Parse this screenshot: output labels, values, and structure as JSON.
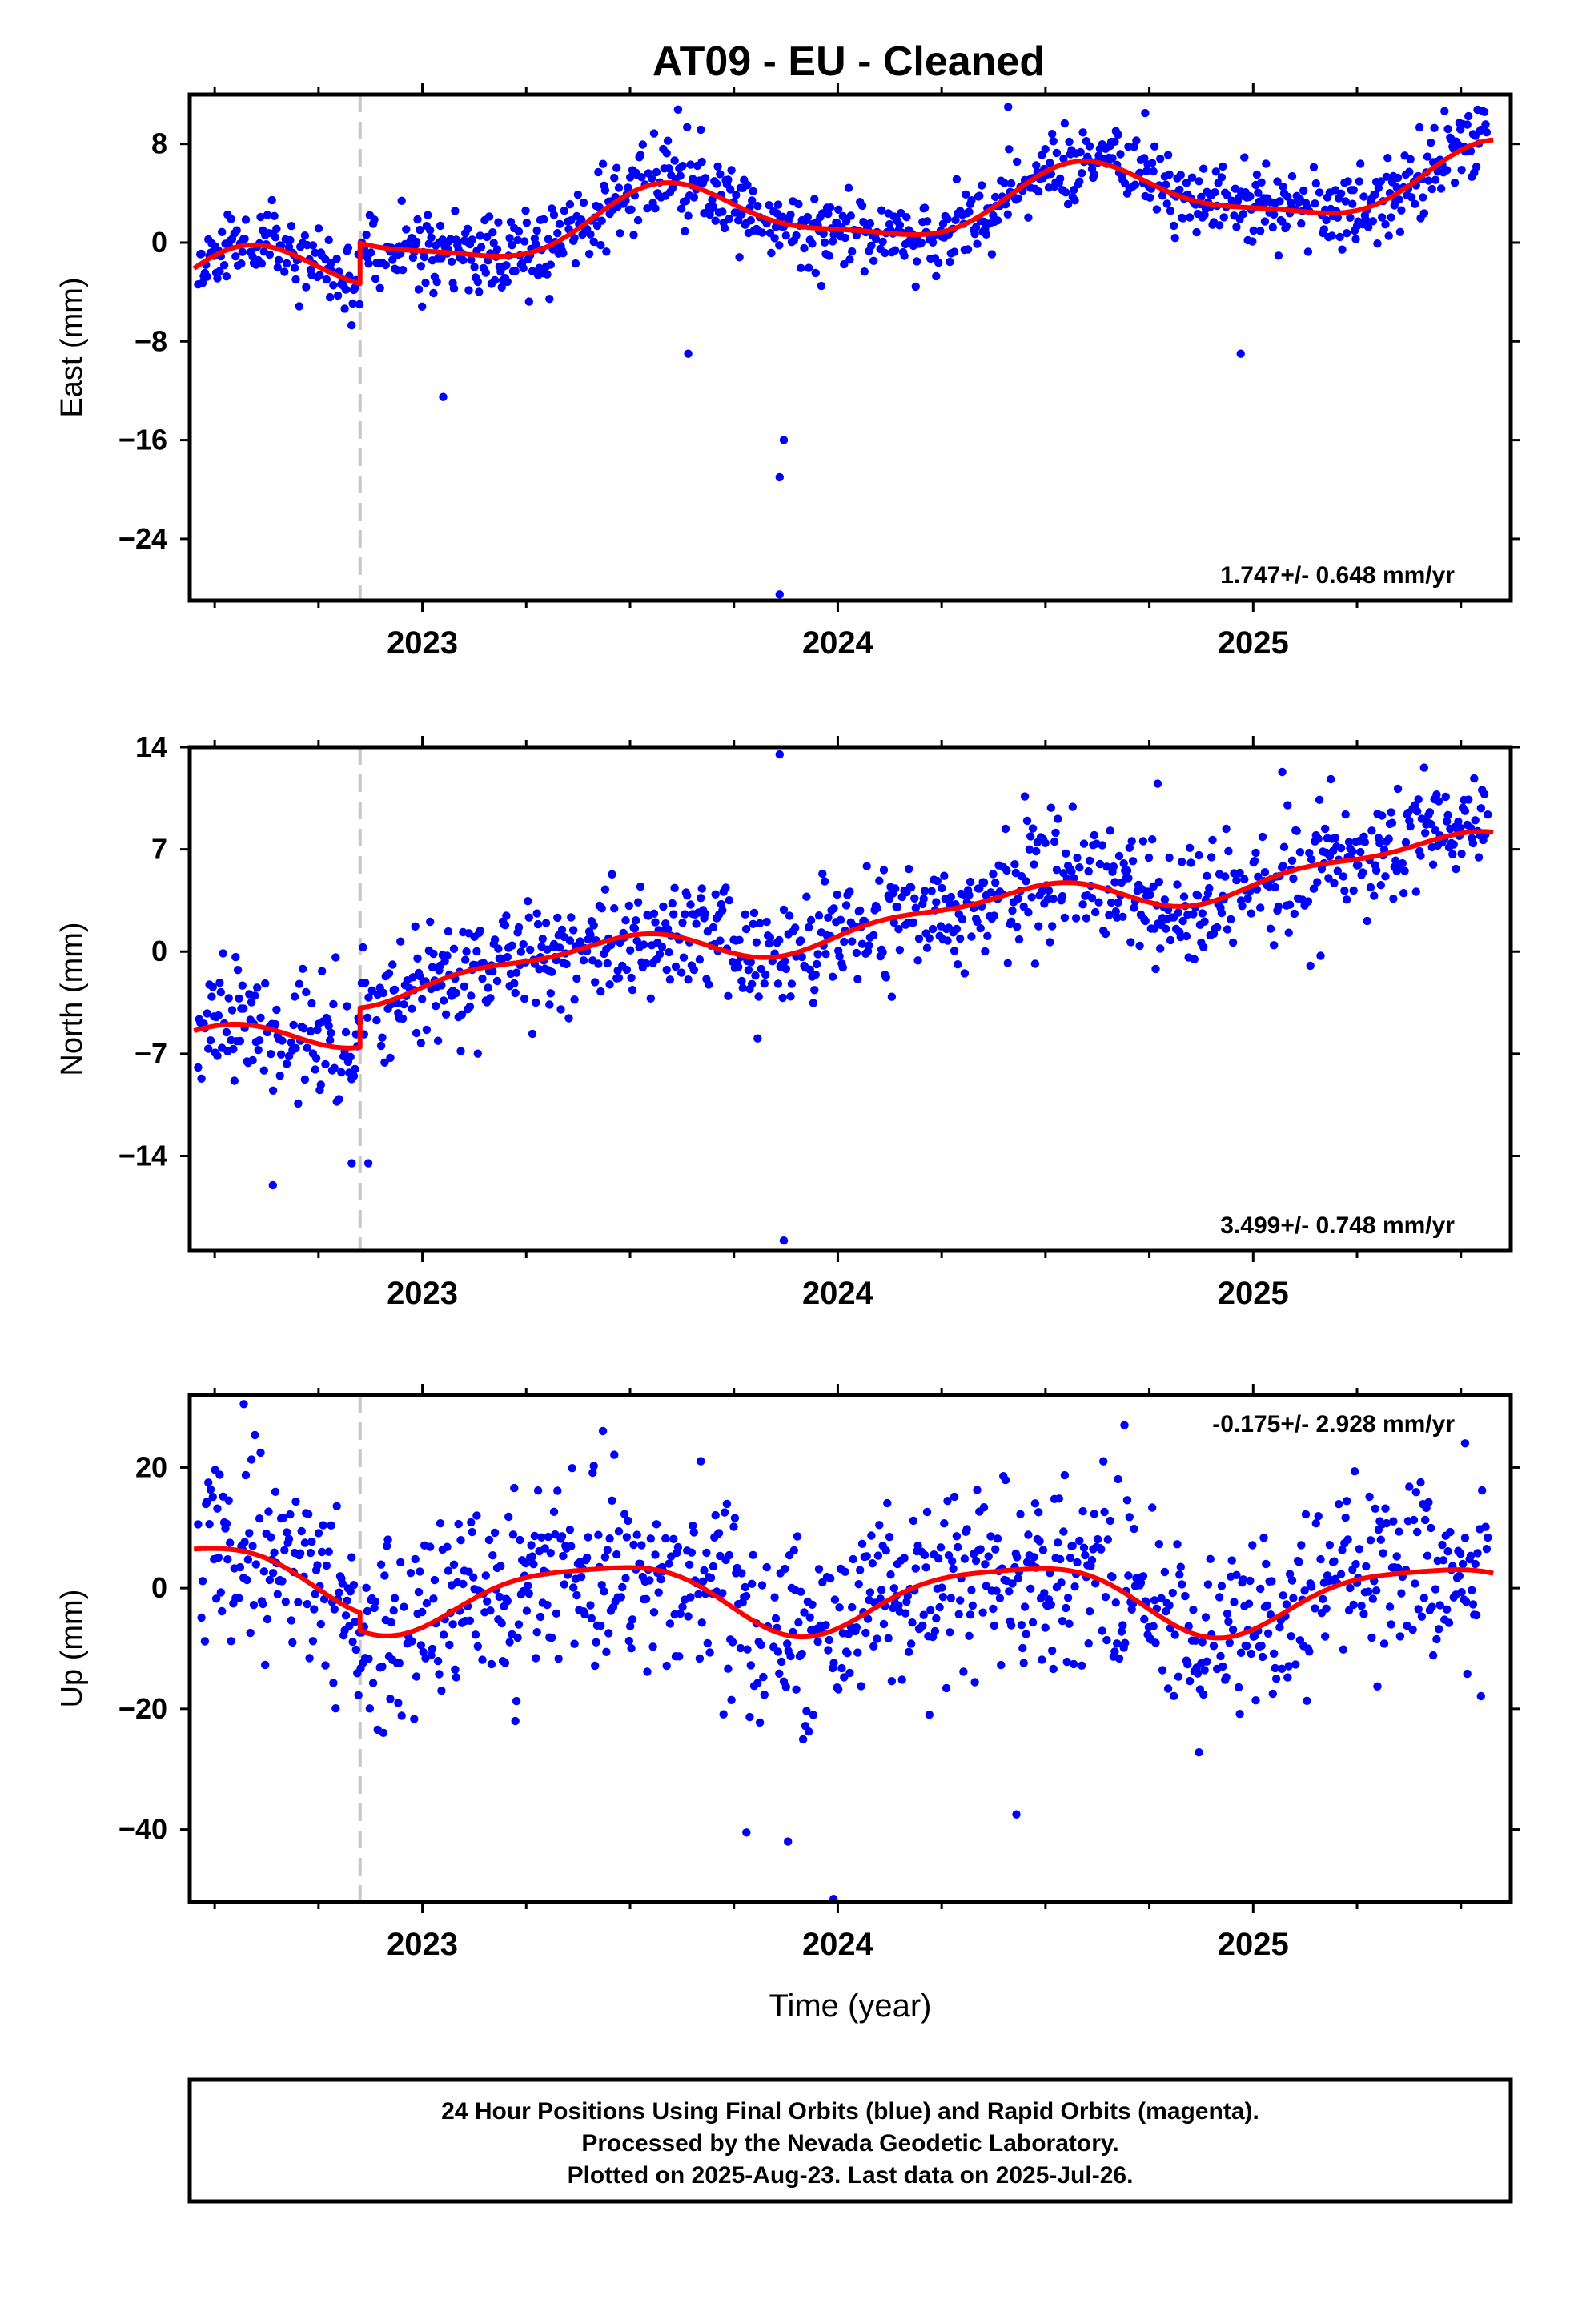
{
  "colors": {
    "final_orbits": "#0000ff",
    "model_fit": "#ff0000",
    "antenna_change": "#c8c8c8"
  },
  "chart_data": [
    {
      "type": "scatter",
      "title": "AT09  - EU - Cleaned",
      "ylabel": "East (mm)",
      "xlabel": "",
      "xlim": [
        2022.44,
        2025.62
      ],
      "ylim": [
        -29,
        12
      ],
      "yticks": [
        -24,
        -16,
        -8,
        0,
        8
      ],
      "xticks": [
        2023,
        2024,
        2025
      ],
      "rate_text": "1.747+/- 0.648 mm/yr",
      "break_epoch": 2022.85,
      "trend": {
        "a": -1.7,
        "v": 1.747,
        "ann_sin": -1.55,
        "ann_cos": -1.9,
        "semi_sin": 0.5,
        "semi_cos": 0.5,
        "offset": 3.3,
        "noise": 1.6,
        "seed": 11
      },
      "outliers": [
        [
          2023.87,
          -16
        ],
        [
          2023.86,
          -19
        ],
        [
          2023.86,
          -28.5
        ],
        [
          2024.41,
          11
        ],
        [
          2024.74,
          10.5
        ],
        [
          2023.05,
          -12.5
        ],
        [
          2023.64,
          -9
        ],
        [
          2024.97,
          -9
        ]
      ],
      "model_series": {
        "name": "model fit",
        "x_range": [
          2022.45,
          2025.58
        ]
      }
    },
    {
      "type": "scatter",
      "title": "",
      "ylabel": "North (mm)",
      "xlabel": "",
      "xlim": [
        2022.44,
        2025.62
      ],
      "ylim": [
        -20.5,
        14
      ],
      "yticks": [
        -14,
        -7,
        0,
        7,
        14
      ],
      "xticks": [
        2023,
        2024,
        2025
      ],
      "rate_text": "3.499+/- 0.748 mm/yr",
      "break_epoch": 2022.85,
      "trend": {
        "a": -2.8,
        "v": 3.499,
        "ann_sin": 0.6,
        "ann_cos": -0.9,
        "semi_sin": 0.4,
        "semi_cos": 0.3,
        "offset": 2.7,
        "noise": 2.0,
        "seed": 23
      },
      "outliers": [
        [
          2023.86,
          13.5
        ],
        [
          2023.87,
          -19.8
        ],
        [
          2022.64,
          -16
        ],
        [
          2022.83,
          -14.5
        ],
        [
          2022.87,
          -14.5
        ],
        [
          2024.77,
          11.5
        ],
        [
          2025.07,
          12.3
        ]
      ],
      "model_series": {
        "name": "model fit",
        "x_range": [
          2022.45,
          2025.58
        ]
      }
    },
    {
      "type": "scatter",
      "title": "",
      "ylabel": "Up (mm)",
      "xlabel": "Time (year)",
      "xlim": [
        2022.44,
        2025.62
      ],
      "ylim": [
        -52,
        32
      ],
      "yticks": [
        -40,
        -20,
        0,
        20
      ],
      "xticks": [
        2023,
        2024,
        2025
      ],
      "rate_text": "-0.175+/- 2.928 mm/yr",
      "break_epoch": 2022.85,
      "trend": {
        "a": 1.8,
        "v": -0.175,
        "ann_sin": 2.5,
        "ann_cos": -5.0,
        "semi_sin": 1.2,
        "semi_cos": -0.4,
        "offset": -3.0,
        "noise": 7.5,
        "seed": 37
      },
      "outliers": [
        [
          2022.57,
          30.5
        ],
        [
          2023.99,
          -51.5
        ],
        [
          2024.69,
          27
        ],
        [
          2025.51,
          24
        ],
        [
          2023.88,
          -42
        ],
        [
          2023.78,
          -40.5
        ],
        [
          2024.43,
          -37.5
        ]
      ],
      "model_series": {
        "name": "model fit",
        "x_range": [
          2022.45,
          2025.58
        ]
      }
    }
  ],
  "footer": {
    "line1": "24 Hour Positions Using Final Orbits (blue) and Rapid Orbits (magenta).",
    "line2": "Processed by the Nevada Geodetic Laboratory.",
    "line3": "Plotted on 2025-Aug-23. Last data on 2025-Jul-26."
  }
}
